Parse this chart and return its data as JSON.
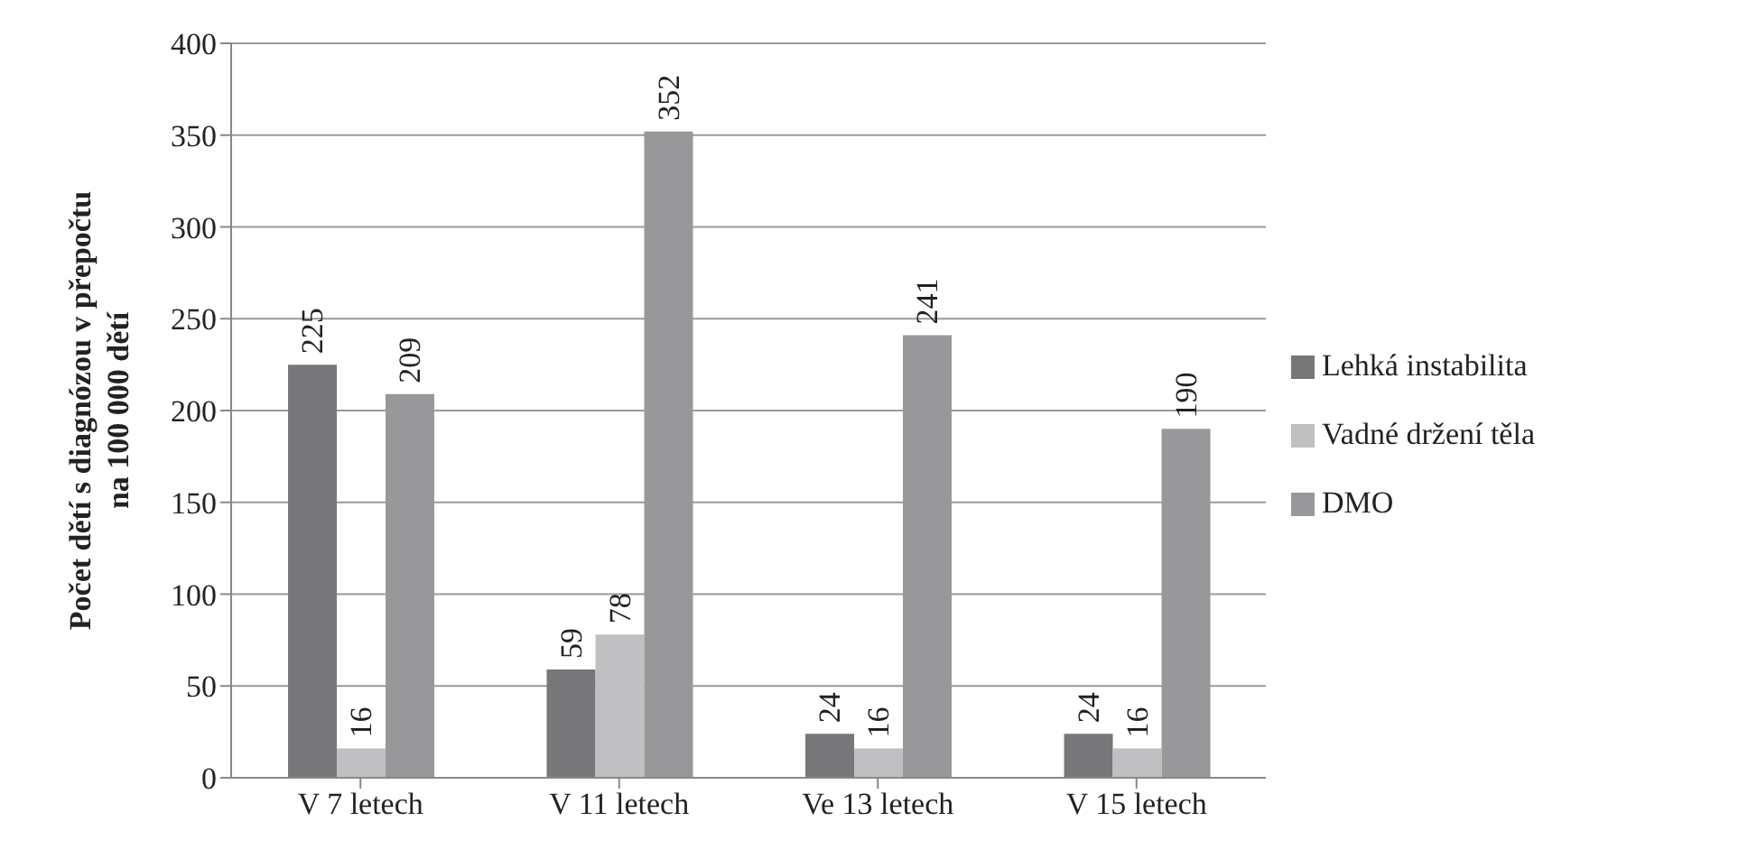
{
  "chart_data": {
    "type": "bar",
    "ylabel": "Počet dětí s diagnózou v přepočtu\nna 100 000 dětí",
    "categories": [
      "V 7 letech",
      "V 11 letech",
      "Ve 13 letech",
      "V 15 letech"
    ],
    "series": [
      {
        "name": "Lehká instabilita",
        "color": "#77777a",
        "values": [
          225,
          59,
          24,
          24
        ]
      },
      {
        "name": "Vadné držení těla",
        "color": "#c0c0c2",
        "values": [
          16,
          78,
          16,
          16
        ]
      },
      {
        "name": "DMO",
        "color": "#98989a",
        "values": [
          209,
          352,
          241,
          190
        ]
      }
    ],
    "ylim": [
      0,
      400
    ],
    "yticks": [
      0,
      50,
      100,
      150,
      200,
      250,
      300,
      350,
      400
    ],
    "grid": "y",
    "legend": "right",
    "data_labels": true
  }
}
